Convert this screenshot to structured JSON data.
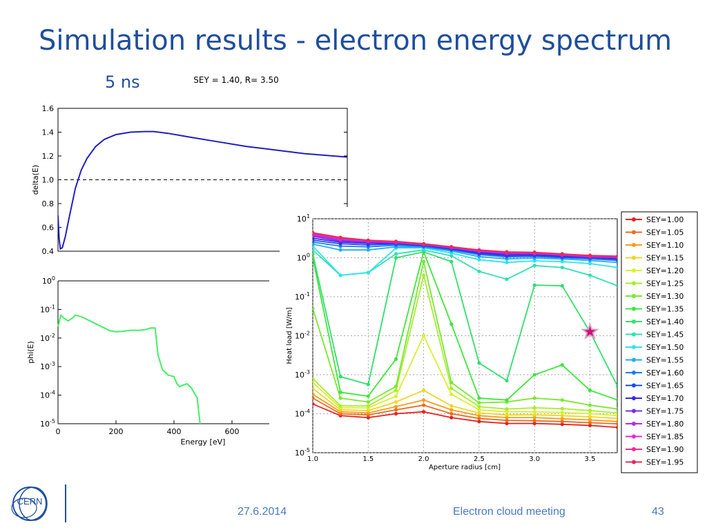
{
  "slide": {
    "title": "Simulation results - electron energy spectrum",
    "subtitle": "5 ns"
  },
  "footer": {
    "logo": "CERN",
    "date": "27.6.2014",
    "meeting": "Electron cloud meeting",
    "page": "43"
  },
  "chart_data": [
    {
      "type": "line",
      "title": "SEY = 1.40, R= 3.50",
      "xlabel": "",
      "ylabel": "delta(E)",
      "xlim": [
        0,
        1000
      ],
      "ylim": [
        0.4,
        1.6
      ],
      "yticks": [
        "0.4",
        "0.6",
        "0.8",
        "1.0",
        "1.2",
        "1.4",
        "1.6"
      ],
      "reference_line": {
        "y": 1.0,
        "style": "dashed"
      },
      "series": [
        {
          "color": "#1f1fbf",
          "x": [
            0,
            4,
            8,
            15,
            25,
            40,
            60,
            80,
            100,
            130,
            160,
            200,
            250,
            300,
            330,
            380,
            450,
            550,
            650,
            750,
            850,
            1000
          ],
          "y": [
            0.7,
            0.5,
            0.42,
            0.43,
            0.52,
            0.7,
            0.93,
            1.08,
            1.18,
            1.28,
            1.34,
            1.38,
            1.4,
            1.405,
            1.405,
            1.39,
            1.36,
            1.32,
            1.28,
            1.25,
            1.22,
            1.19
          ]
        }
      ]
    },
    {
      "type": "line",
      "title": "",
      "xlabel": "Energy [eV]",
      "ylabel": "phi(E)",
      "xlim": [
        0,
        1000
      ],
      "ylim": [
        -5,
        0
      ],
      "yscale": "log",
      "xticks": [
        "0",
        "200",
        "400",
        "600"
      ],
      "yticks": [
        "10^-5",
        "10^-4",
        "10^-3",
        "10^-2",
        "10^-1",
        "10^0"
      ],
      "series": [
        {
          "color": "#44ee66",
          "x": [
            0,
            10,
            20,
            35,
            50,
            60,
            80,
            100,
            140,
            180,
            200,
            220,
            250,
            280,
            300,
            320,
            335,
            345,
            360,
            380,
            400,
            410,
            420,
            430,
            445,
            460,
            480,
            490
          ],
          "y_log10": [
            -1.6,
            -1.2,
            -1.3,
            -1.4,
            -1.3,
            -1.2,
            -1.25,
            -1.35,
            -1.55,
            -1.75,
            -1.78,
            -1.77,
            -1.73,
            -1.73,
            -1.71,
            -1.65,
            -1.65,
            -2.6,
            -3.1,
            -3.3,
            -3.35,
            -3.6,
            -3.7,
            -3.65,
            -3.6,
            -3.75,
            -4.1,
            -5.0
          ]
        }
      ]
    },
    {
      "type": "line",
      "title": "",
      "xlabel": "Aperture radius [cm]",
      "ylabel": "Heat load [W/m]",
      "xlim": [
        1.0,
        3.75
      ],
      "ylim": [
        -5,
        1
      ],
      "yscale": "log",
      "xticks": [
        "1.0",
        "1.5",
        "2.0",
        "2.5",
        "3.0",
        "3.5"
      ],
      "yticks": [
        "10^-5",
        "10^-4",
        "10^-3",
        "10^-2",
        "10^-1",
        "10^0",
        "10^1"
      ],
      "grid": true,
      "legend": "right, outside",
      "x": [
        1.0,
        1.25,
        1.5,
        1.75,
        2.0,
        2.25,
        2.5,
        2.75,
        3.0,
        3.25,
        3.5,
        3.75
      ],
      "marker": {
        "shape": "star",
        "x": 3.5,
        "y_log10": -1.9,
        "color": "#cc1177"
      },
      "series": [
        {
          "name": "SEY=1.00",
          "color": "#e8201f",
          "y_log10": [
            -3.75,
            -4.05,
            -4.1,
            -4.0,
            -3.95,
            -4.1,
            -4.2,
            -4.25,
            -4.25,
            -4.27,
            -4.3,
            -4.35
          ]
        },
        {
          "name": "SEY=1.05",
          "color": "#ef6a1c",
          "y_log10": [
            -3.6,
            -4.0,
            -4.03,
            -3.9,
            -3.78,
            -4.0,
            -4.12,
            -4.17,
            -4.18,
            -4.2,
            -4.23,
            -4.26
          ]
        },
        {
          "name": "SEY=1.10",
          "color": "#f59d1c",
          "y_log10": [
            -3.5,
            -3.95,
            -3.98,
            -3.82,
            -3.65,
            -3.9,
            -4.05,
            -4.1,
            -4.1,
            -4.13,
            -4.16,
            -4.2
          ]
        },
        {
          "name": "SEY=1.15",
          "color": "#f4d324",
          "y_log10": [
            -3.35,
            -3.9,
            -3.92,
            -3.7,
            -3.4,
            -3.8,
            -3.98,
            -4.03,
            -4.03,
            -4.05,
            -4.08,
            -4.12
          ]
        },
        {
          "name": "SEY=1.20",
          "color": "#d8f02c",
          "y_log10": [
            -3.2,
            -3.85,
            -3.85,
            -3.55,
            -2.0,
            -3.5,
            -3.9,
            -3.95,
            -3.95,
            -3.97,
            -4.0,
            -4.05
          ]
        },
        {
          "name": "SEY=1.25",
          "color": "#a6ee2c",
          "y_log10": [
            -3.1,
            -3.8,
            -3.8,
            -3.4,
            -0.45,
            -3.35,
            -3.82,
            -3.88,
            -3.85,
            -3.87,
            -3.92,
            -3.98
          ]
        },
        {
          "name": "SEY=1.30",
          "color": "#78e82e",
          "y_log10": [
            -1.3,
            -3.6,
            -3.7,
            -3.3,
            -0.1,
            -3.2,
            -3.72,
            -3.7,
            -3.6,
            -3.65,
            -3.78,
            -3.88
          ]
        },
        {
          "name": "SEY=1.35",
          "color": "#3fe63a",
          "y_log10": [
            0.0,
            -3.45,
            -3.55,
            -2.6,
            0.15,
            -1.7,
            -3.6,
            -3.65,
            -3.0,
            -2.75,
            -3.4,
            -3.65
          ]
        },
        {
          "name": "SEY=1.40",
          "color": "#2fe06a",
          "y_log10": [
            0.1,
            -3.05,
            -3.25,
            0.0,
            0.15,
            -0.1,
            -2.7,
            -3.15,
            -0.7,
            -0.72,
            -1.9,
            -3.3
          ]
        },
        {
          "name": "SEY=1.45",
          "color": "#2fe0b0",
          "y_log10": [
            0.2,
            -0.45,
            -0.38,
            0.1,
            0.2,
            0.05,
            -0.35,
            -0.55,
            -0.2,
            -0.25,
            -0.45,
            -0.72
          ]
        },
        {
          "name": "SEY=1.50",
          "color": "#2ee4ea",
          "y_log10": [
            0.3,
            -0.45,
            -0.38,
            0.25,
            0.25,
            0.12,
            -0.05,
            -0.12,
            -0.08,
            -0.1,
            -0.15,
            -0.25
          ]
        },
        {
          "name": "SEY=1.55",
          "color": "#1eaef0",
          "y_log10": [
            0.35,
            0.2,
            0.2,
            0.28,
            0.27,
            0.17,
            0.03,
            -0.03,
            -0.01,
            -0.03,
            -0.07,
            -0.12
          ]
        },
        {
          "name": "SEY=1.60",
          "color": "#1c7bf0",
          "y_log10": [
            0.4,
            0.3,
            0.28,
            0.32,
            0.29,
            0.2,
            0.08,
            0.02,
            0.03,
            0.0,
            -0.03,
            -0.07
          ]
        },
        {
          "name": "SEY=1.65",
          "color": "#1e48e8",
          "y_log10": [
            0.45,
            0.36,
            0.33,
            0.35,
            0.31,
            0.22,
            0.11,
            0.05,
            0.06,
            0.02,
            0.0,
            -0.04
          ]
        },
        {
          "name": "SEY=1.70",
          "color": "#3a28e0",
          "y_log10": [
            0.5,
            0.4,
            0.37,
            0.37,
            0.32,
            0.24,
            0.13,
            0.08,
            0.08,
            0.04,
            0.01,
            -0.02
          ]
        },
        {
          "name": "SEY=1.75",
          "color": "#7a2ae6",
          "y_log10": [
            0.55,
            0.43,
            0.4,
            0.38,
            0.33,
            0.25,
            0.15,
            0.1,
            0.1,
            0.06,
            0.02,
            0.0
          ]
        },
        {
          "name": "SEY=1.80",
          "color": "#b42ae8",
          "y_log10": [
            0.58,
            0.46,
            0.42,
            0.39,
            0.34,
            0.26,
            0.17,
            0.12,
            0.11,
            0.07,
            0.03,
            0.01
          ]
        },
        {
          "name": "SEY=1.85",
          "color": "#e62ad4",
          "y_log10": [
            0.6,
            0.48,
            0.43,
            0.4,
            0.35,
            0.27,
            0.18,
            0.13,
            0.12,
            0.08,
            0.04,
            0.02
          ]
        },
        {
          "name": "SEY=1.90",
          "color": "#ea2a98",
          "y_log10": [
            0.62,
            0.5,
            0.44,
            0.41,
            0.35,
            0.28,
            0.19,
            0.14,
            0.13,
            0.09,
            0.05,
            0.03
          ]
        },
        {
          "name": "SEY=1.95",
          "color": "#e82a5a",
          "y_log10": [
            0.64,
            0.52,
            0.45,
            0.42,
            0.36,
            0.28,
            0.2,
            0.15,
            0.14,
            0.1,
            0.06,
            0.04
          ]
        }
      ]
    }
  ]
}
